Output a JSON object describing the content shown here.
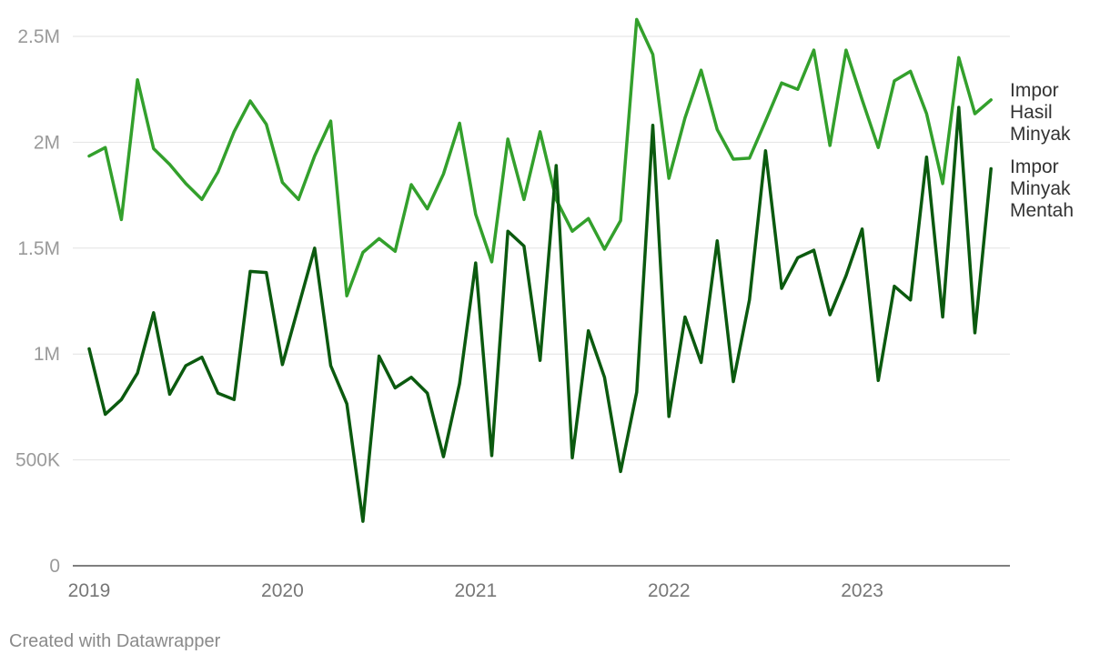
{
  "footer_text": "Created with Datawrapper",
  "chart_data": {
    "type": "line",
    "x_start": "2019-01",
    "x_step": "month",
    "x_tick_labels": [
      "2019",
      "2020",
      "2021",
      "2022",
      "2023"
    ],
    "y_tick_labels": [
      "0",
      "500K",
      "1M",
      "1.5M",
      "2M",
      "2.5M"
    ],
    "y_ticks": [
      0,
      500000,
      1000000,
      1500000,
      2000000,
      2500000
    ],
    "ylim": [
      0,
      2500000
    ],
    "grid": true,
    "legend": "direct labels at line ends (right)",
    "series": [
      {
        "name": "Impor Hasil Minyak",
        "label_lines": [
          "Impor",
          "Hasil",
          "Minyak"
        ],
        "color": "#33a02c",
        "values": [
          1935000,
          1975000,
          1635000,
          2295000,
          1970000,
          1895000,
          1805000,
          1730000,
          1860000,
          2050000,
          2195000,
          2085000,
          1810000,
          1730000,
          1935000,
          2100000,
          1275000,
          1480000,
          1545000,
          1485000,
          1800000,
          1685000,
          1850000,
          2090000,
          1660000,
          1435000,
          2015000,
          1730000,
          2050000,
          1730000,
          1580000,
          1640000,
          1495000,
          1630000,
          2580000,
          2415000,
          1830000,
          2115000,
          2340000,
          2060000,
          1920000,
          1925000,
          2100000,
          2280000,
          2250000,
          2435000,
          1985000,
          2435000,
          2200000,
          1975000,
          2290000,
          2335000,
          2135000,
          1805000,
          2400000,
          2135000,
          2200000
        ]
      },
      {
        "name": "Impor Minyak Mentah",
        "label_lines": [
          "Impor",
          "Minyak",
          "Mentah"
        ],
        "color": "#0b5a0f",
        "values": [
          1025000,
          715000,
          785000,
          910000,
          1195000,
          810000,
          945000,
          985000,
          815000,
          785000,
          1390000,
          1385000,
          950000,
          1225000,
          1500000,
          945000,
          765000,
          210000,
          990000,
          840000,
          890000,
          815000,
          515000,
          860000,
          1430000,
          520000,
          1580000,
          1510000,
          970000,
          1890000,
          510000,
          1110000,
          890000,
          445000,
          820000,
          2080000,
          705000,
          1175000,
          960000,
          1535000,
          870000,
          1255000,
          1960000,
          1310000,
          1455000,
          1490000,
          1185000,
          1370000,
          1590000,
          875000,
          1320000,
          1255000,
          1930000,
          1175000,
          2165000,
          1100000,
          1875000
        ]
      }
    ]
  }
}
